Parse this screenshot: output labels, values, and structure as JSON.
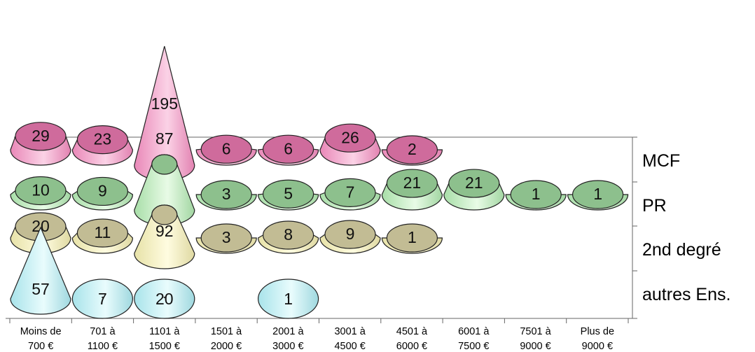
{
  "chart_data": {
    "type": "bar",
    "style": "3d-cylinders-and-cones",
    "categories": [
      [
        "Moins de",
        "700  €"
      ],
      [
        "701 à",
        "1100 €"
      ],
      [
        "1101 à",
        "1500 €"
      ],
      [
        "1501 à",
        "2000 €"
      ],
      [
        "2001 à",
        "3000 €"
      ],
      [
        "3001 à",
        "4500 €"
      ],
      [
        "4501 à",
        "6000 €"
      ],
      [
        "6001 à",
        "7500 €"
      ],
      [
        "7501 à",
        "9000 €"
      ],
      [
        "Plus de",
        "9000 €"
      ]
    ],
    "series": [
      {
        "name": "MCF",
        "values": [
          29,
          23,
          195,
          6,
          6,
          26,
          2,
          null,
          null,
          null
        ],
        "color": "#d9709f"
      },
      {
        "name": "PR",
        "values": [
          10,
          9,
          87,
          3,
          5,
          7,
          21,
          21,
          1,
          1
        ],
        "color": "#94c294"
      },
      {
        "name": "2nd degré",
        "values": [
          20,
          11,
          92,
          3,
          8,
          9,
          1,
          null,
          null,
          null
        ],
        "color": "#c4be96"
      },
      {
        "name": "autres Ens.",
        "values": [
          57,
          7,
          20,
          null,
          1,
          null,
          null,
          null,
          null,
          null
        ],
        "color": "#a6d6dc"
      }
    ],
    "grid": false,
    "legend": "series labels on right depth axis"
  }
}
